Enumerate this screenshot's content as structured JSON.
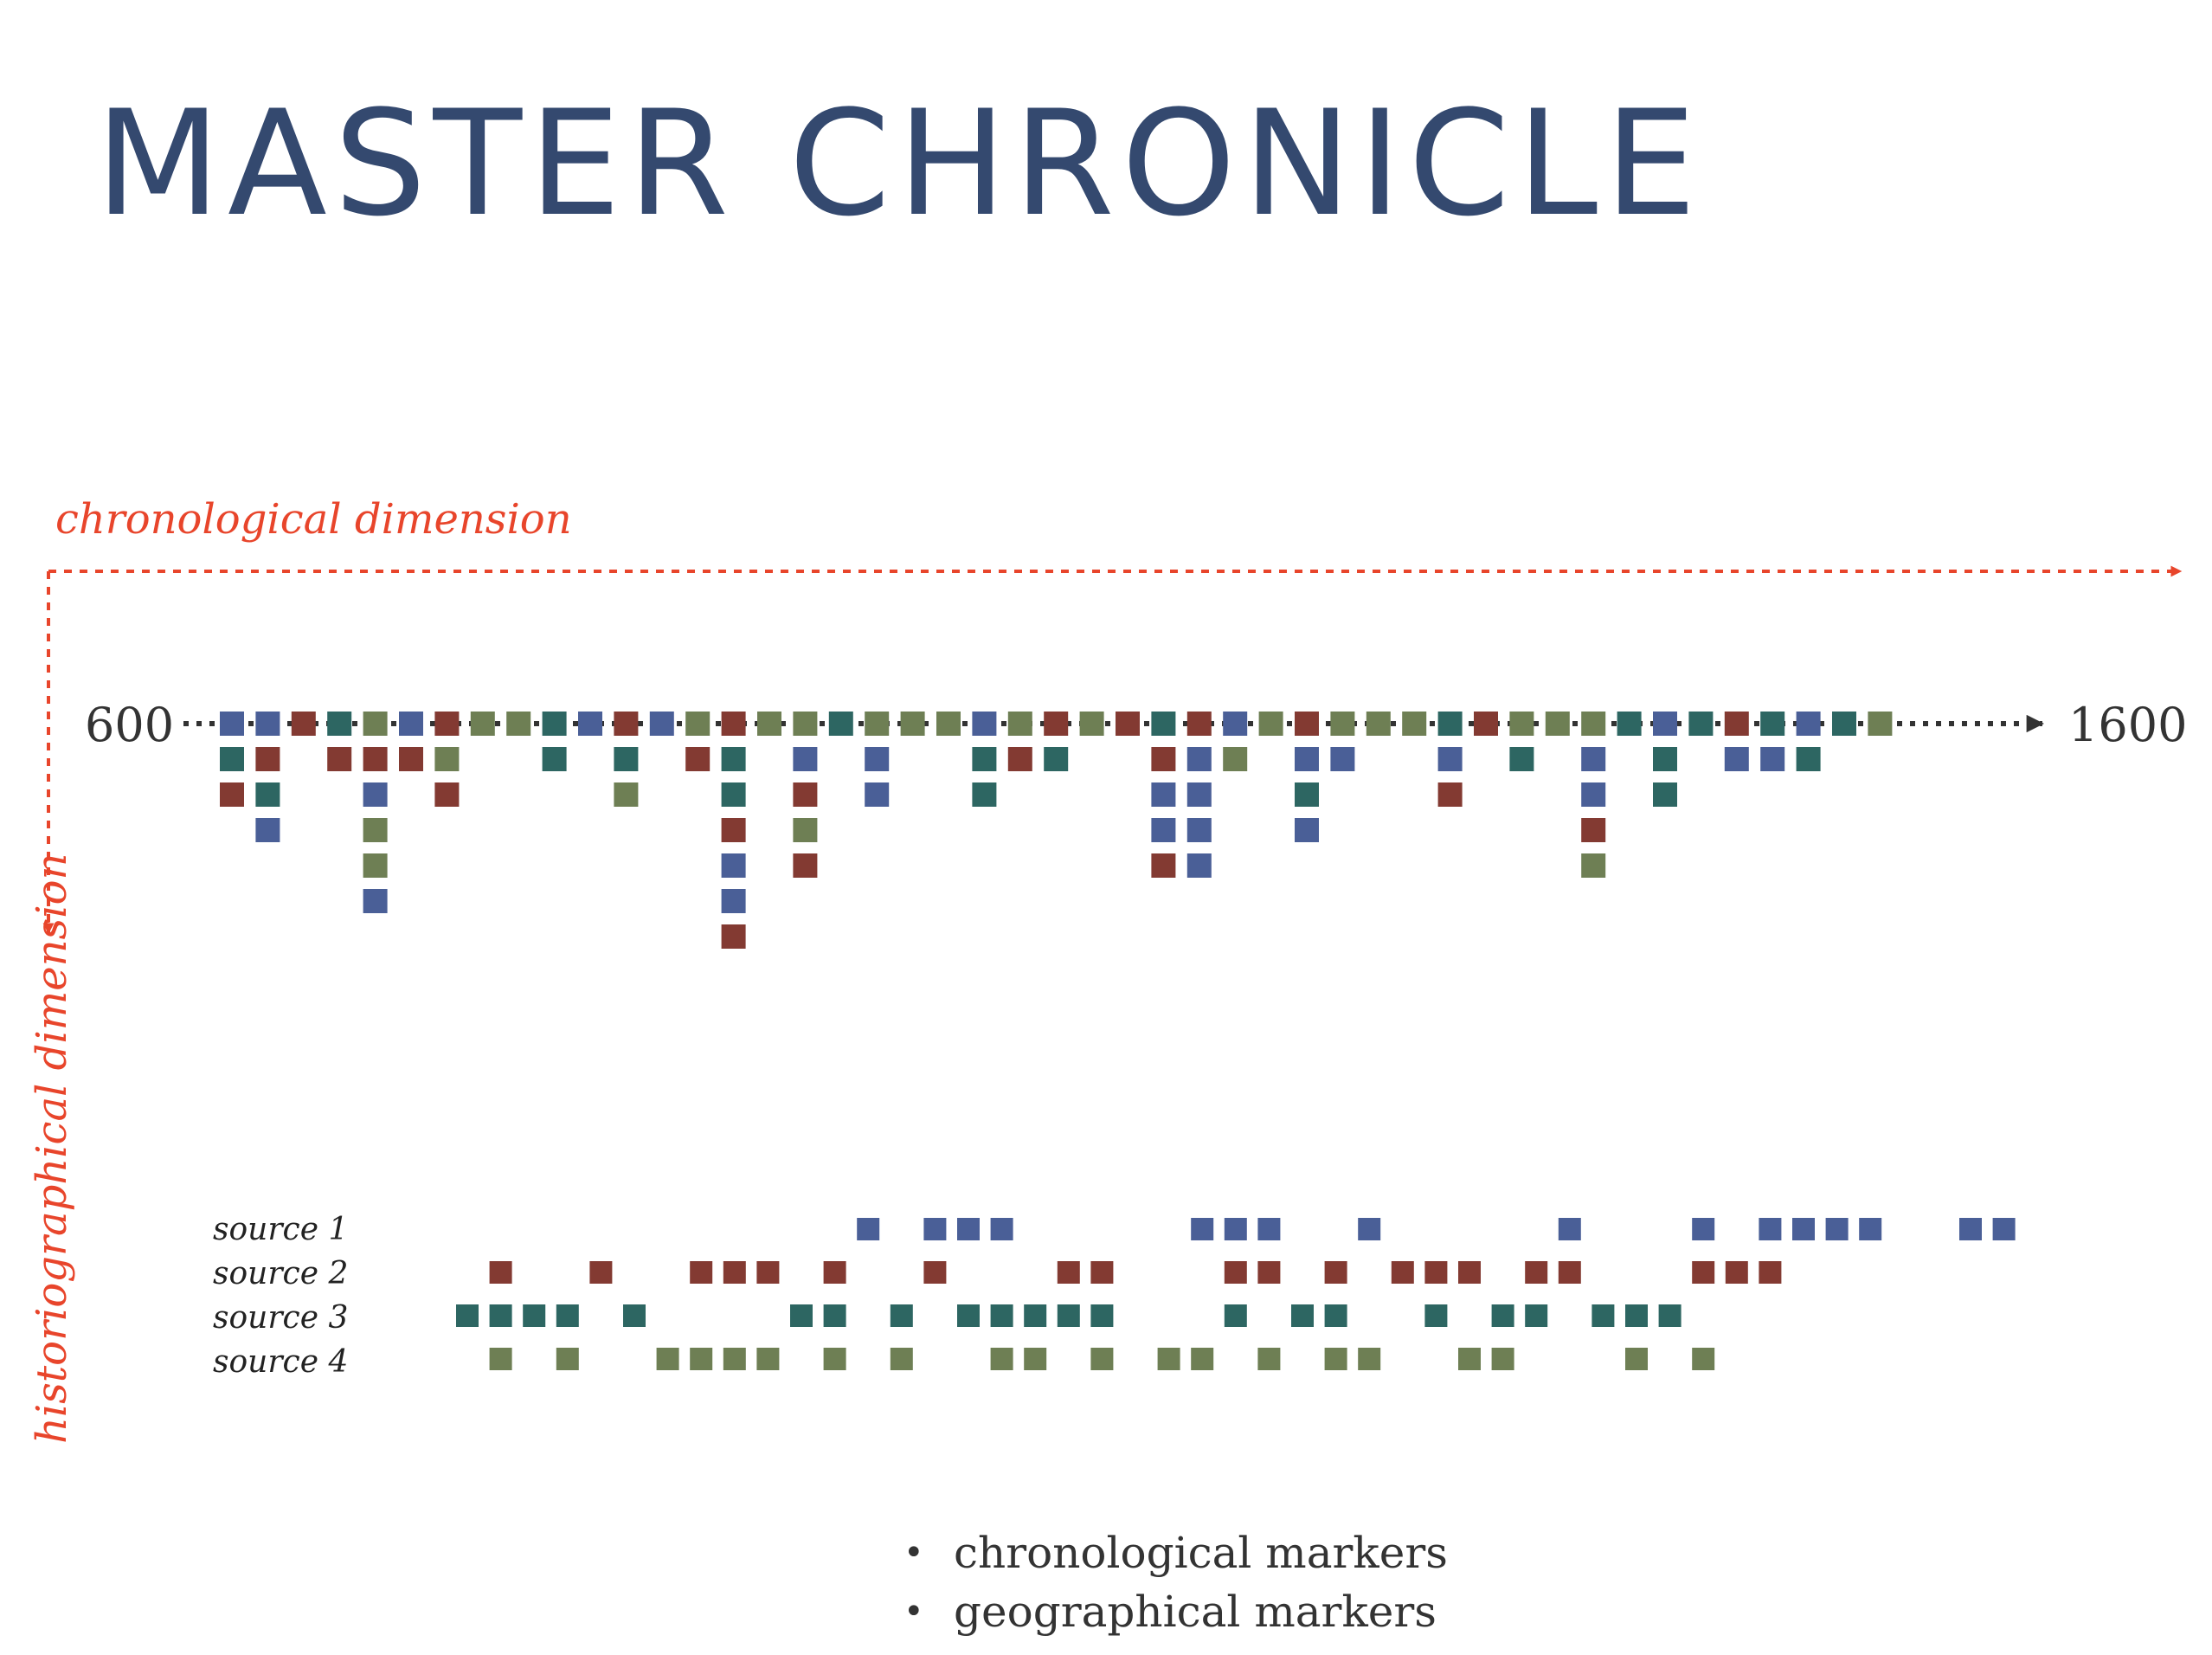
{
  "title": "MASTER CHRONICLE",
  "axes": {
    "chronological": "chronological dimension",
    "historiographical": "historiographical dimension"
  },
  "timeline": {
    "start_label": "600",
    "end_label": "1600"
  },
  "legend": {
    "bullet": "•",
    "items": [
      "chronological markers",
      "geographical markers"
    ]
  },
  "colors": {
    "source1": "#4a5f97",
    "source2": "#833a32",
    "source3": "#2d6662",
    "source4": "#6e7f54",
    "axis_red": "#e8452b",
    "timeline": "#333333",
    "title": "#34496f"
  },
  "sources": [
    {
      "label": "source 1",
      "color_key": "source1"
    },
    {
      "label": "source 2",
      "color_key": "source2"
    },
    {
      "label": "source 3",
      "color_key": "source3"
    },
    {
      "label": "source 4",
      "color_key": "source4"
    }
  ],
  "master_chronicle": {
    "note": "",
    "columns": [
      [
        1,
        3,
        2
      ],
      [
        1,
        2,
        3,
        1
      ],
      [
        2
      ],
      [
        3,
        2
      ],
      [
        4,
        2,
        1,
        4,
        4,
        1
      ],
      [
        1,
        2
      ],
      [
        2,
        4,
        2
      ],
      [
        4
      ],
      [
        4
      ],
      [
        3,
        3
      ],
      [
        1
      ],
      [
        2,
        3,
        4
      ],
      [
        1
      ],
      [
        4,
        2
      ],
      [
        2,
        3,
        3,
        2,
        1,
        1,
        2
      ],
      [
        4
      ],
      [
        4,
        1,
        2,
        4,
        2
      ],
      [
        3
      ],
      [
        4,
        1,
        1
      ],
      [
        4
      ],
      [
        4
      ],
      [
        1,
        3,
        3
      ],
      [
        4,
        2
      ],
      [
        2,
        3
      ],
      [
        4
      ],
      [
        2
      ],
      [
        3,
        2,
        1,
        1,
        2
      ],
      [
        2,
        1,
        1,
        1,
        1
      ],
      [
        1,
        4
      ],
      [
        4
      ],
      [
        2,
        1,
        3,
        1
      ],
      [
        4,
        1
      ],
      [
        4
      ],
      [
        4
      ],
      [
        3,
        1,
        2
      ],
      [
        2
      ],
      [
        4,
        3
      ],
      [
        4
      ],
      [
        4,
        1,
        1,
        2,
        4
      ],
      [
        3
      ],
      [
        1,
        3,
        3
      ],
      [
        3
      ],
      [
        2,
        1
      ],
      [
        3,
        1
      ],
      [
        1,
        3
      ],
      [
        3
      ],
      [
        4
      ]
    ]
  },
  "source_events": {
    "source 1": [
      12,
      14,
      15,
      16,
      22,
      23,
      24,
      27,
      33,
      37,
      39,
      40,
      41,
      42,
      45,
      46
    ],
    "source 2": [
      1,
      4,
      7,
      8,
      9,
      11,
      14,
      18,
      19,
      23,
      24,
      26,
      28,
      29,
      30,
      32,
      33,
      37,
      38,
      39
    ],
    "source 3": [
      0,
      1,
      2,
      3,
      5,
      10,
      11,
      13,
      15,
      16,
      17,
      18,
      19,
      23,
      25,
      26,
      29,
      31,
      32,
      34,
      35,
      36
    ],
    "source 4": [
      1,
      3,
      6,
      7,
      8,
      9,
      11,
      13,
      16,
      17,
      19,
      21,
      22,
      24,
      26,
      27,
      30,
      31,
      35,
      37
    ]
  }
}
